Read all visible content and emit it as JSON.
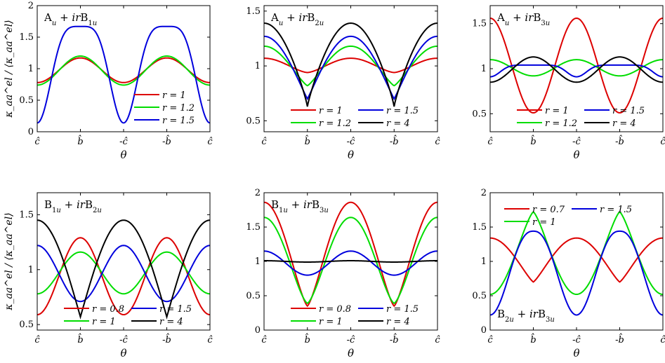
{
  "figure": {
    "width": 947,
    "height": 518
  },
  "chart_data": [
    {
      "type": "line",
      "panel": "top-left",
      "annotation": "A_u + irB_1u",
      "annotation_position": "top-left",
      "xlabel": "θ",
      "ylabel": "κ_aa^el / ⟨κ_aa^el⟩",
      "x_tick_labels": [
        "ĉ",
        "b̂",
        "-ĉ",
        "-b̂",
        "ĉ"
      ],
      "x_range": [
        0,
        4
      ],
      "ylim": [
        0,
        2
      ],
      "y_ticks": [
        0,
        0.5,
        1,
        1.5,
        2
      ],
      "legend": {
        "position": "bottom-right",
        "columns": 1
      },
      "series": [
        {
          "name": "r = 1",
          "color": "#dd0000",
          "kind": "cos2",
          "at_c": 0.78,
          "at_b": 1.17
        },
        {
          "name": "r = 1.2",
          "color": "#00dd00",
          "kind": "cos2",
          "at_c": 0.74,
          "at_b": 1.2
        },
        {
          "name": "r = 1.5",
          "color": "#0000dd",
          "kind": "bump",
          "at_c": 0.14,
          "at_b": 1.67,
          "power": 2.2
        }
      ]
    },
    {
      "type": "line",
      "panel": "top-middle",
      "annotation": "A_u + irB_2u",
      "annotation_position": "top-left",
      "xlabel": "θ",
      "ylabel": "",
      "x_tick_labels": [
        "ĉ",
        "b̂",
        "-ĉ",
        "-b̂",
        "ĉ"
      ],
      "x_range": [
        0,
        4
      ],
      "ylim": [
        0.4,
        1.55
      ],
      "y_ticks": [
        0.5,
        1,
        1.5
      ],
      "legend": {
        "position": "bottom",
        "columns": 2
      },
      "series": [
        {
          "name": "r = 1",
          "color": "#dd0000",
          "kind": "sharp",
          "at_c": 1.07,
          "at_b": 0.94,
          "sharp": 1.3
        },
        {
          "name": "r = 1.2",
          "color": "#00dd00",
          "kind": "sharp",
          "at_c": 1.18,
          "at_b": 0.82,
          "sharp": 1.6
        },
        {
          "name": "r = 1.5",
          "color": "#0000dd",
          "kind": "sharp",
          "at_c": 1.27,
          "at_b": 0.7,
          "sharp": 1.9
        },
        {
          "name": "r = 4",
          "color": "#000000",
          "kind": "sharp",
          "at_c": 1.39,
          "at_b": 0.63,
          "sharp": 2.3
        }
      ]
    },
    {
      "type": "line",
      "panel": "top-right",
      "annotation": "A_u + irB_3u",
      "annotation_position": "top-left",
      "xlabel": "θ",
      "ylabel": "",
      "x_tick_labels": [
        "ĉ",
        "b̂",
        "-ĉ",
        "-b̂",
        "ĉ"
      ],
      "x_range": [
        0,
        4
      ],
      "ylim": [
        0.3,
        1.7
      ],
      "y_ticks": [
        0.5,
        1,
        1.5
      ],
      "legend": {
        "position": "bottom",
        "columns": 2
      },
      "series": [
        {
          "name": "r = 1",
          "color": "#dd0000",
          "kind": "cos2",
          "at_c": 1.56,
          "at_b": 0.51
        },
        {
          "name": "r = 1.2",
          "color": "#00dd00",
          "kind": "cos2",
          "at_c": 1.1,
          "at_b": 0.92
        },
        {
          "name": "r = 1.5",
          "color": "#0000dd",
          "kind": "dip",
          "at_c": 0.91,
          "at_b": 1.04,
          "power": 4
        },
        {
          "name": "r = 4",
          "color": "#000000",
          "kind": "cos2",
          "at_c": 0.85,
          "at_b": 1.13
        }
      ]
    },
    {
      "type": "line",
      "panel": "bottom-left",
      "annotation": "B_1u + irB_2u",
      "annotation_position": "top-left",
      "xlabel": "θ",
      "ylabel": "κ_aa^el / ⟨κ_aa^el⟩",
      "x_tick_labels": [
        "ĉ",
        "b̂",
        "-ĉ",
        "-b̂",
        "ĉ"
      ],
      "x_range": [
        0,
        4
      ],
      "ylim": [
        0.45,
        1.7
      ],
      "y_ticks": [
        0.5,
        1,
        1.5
      ],
      "legend": {
        "position": "bottom",
        "columns": 2
      },
      "series": [
        {
          "name": "r = 0.8",
          "color": "#dd0000",
          "kind": "cos2",
          "at_c": 0.59,
          "at_b": 1.29
        },
        {
          "name": "r = 1",
          "color": "#00dd00",
          "kind": "cos2",
          "at_c": 0.78,
          "at_b": 1.16
        },
        {
          "name": "r = 1.5",
          "color": "#0000dd",
          "kind": "cos2",
          "at_c": 1.22,
          "at_b": 0.71
        },
        {
          "name": "r = 4",
          "color": "#000000",
          "kind": "flat",
          "at_c": 1.45,
          "at_b": 0.57,
          "power": 0.5
        }
      ]
    },
    {
      "type": "line",
      "panel": "bottom-middle",
      "annotation": "B_1u + irB_3u",
      "annotation_position": "top-left",
      "xlabel": "θ",
      "ylabel": "",
      "x_tick_labels": [
        "ĉ",
        "b̂",
        "-ĉ",
        "-b̂",
        "ĉ"
      ],
      "x_range": [
        0,
        4
      ],
      "ylim": [
        0,
        2
      ],
      "y_ticks": [
        0,
        0.5,
        1,
        1.5,
        2
      ],
      "legend": {
        "position": "bottom",
        "columns": 2
      },
      "series": [
        {
          "name": "r = 0.8",
          "color": "#dd0000",
          "kind": "sharp",
          "at_c": 1.86,
          "at_b": 0.35,
          "sharp": 1.5
        },
        {
          "name": "r = 1",
          "color": "#00dd00",
          "kind": "sharp",
          "at_c": 1.64,
          "at_b": 0.39,
          "sharp": 1.4
        },
        {
          "name": "r = 1.5",
          "color": "#0000dd",
          "kind": "cos2",
          "at_c": 1.15,
          "at_b": 0.8
        },
        {
          "name": "r = 4",
          "color": "#000000",
          "kind": "cos2",
          "at_c": 1.01,
          "at_b": 0.99
        }
      ]
    },
    {
      "type": "line",
      "panel": "bottom-right",
      "annotation": "B_2u + irB_3u",
      "annotation_position": "bottom-left",
      "xlabel": "θ",
      "ylabel": "",
      "x_tick_labels": [
        "ĉ",
        "b̂",
        "-ĉ",
        "-b̂",
        "ĉ"
      ],
      "x_range": [
        0,
        4
      ],
      "ylim": [
        0,
        2
      ],
      "y_ticks": [
        0,
        0.5,
        1,
        1.5,
        2
      ],
      "legend": {
        "position": "top",
        "columns": 2
      },
      "series": [
        {
          "name": "r = 0.7",
          "color": "#dd0000",
          "kind": "flat",
          "at_c": 1.34,
          "at_b": 0.7,
          "power": 0.6
        },
        {
          "name": "r = 1",
          "color": "#00dd00",
          "kind": "sharp",
          "at_c": 0.52,
          "at_b": 1.72,
          "sharp": 1.5
        },
        {
          "name": "r = 1.5",
          "color": "#0000dd",
          "kind": "dip",
          "at_c": 0.22,
          "at_b": 1.44,
          "power": 1.25
        }
      ]
    }
  ]
}
